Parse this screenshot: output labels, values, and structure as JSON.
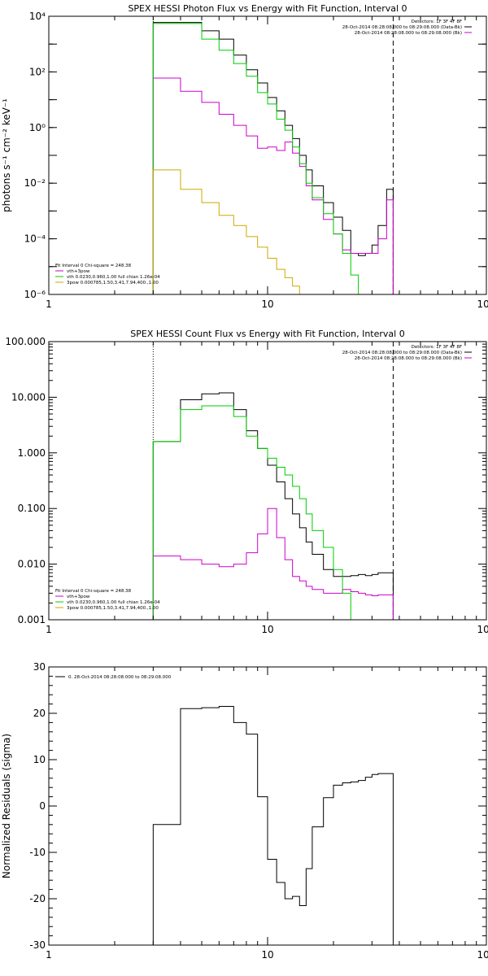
{
  "chart_data": [
    {
      "type": "line",
      "title": "SPEX HESSI Photon Flux vs Energy with Fit Function, Interval 0",
      "xlabel": "",
      "ylabel": "photons s⁻¹ cm⁻² keV⁻¹",
      "xscale": "log",
      "yscale": "log",
      "xlim": [
        1,
        100
      ],
      "ylim": [
        1e-06,
        10000.0
      ],
      "x_tick_labels": [
        "1",
        "10",
        "100"
      ],
      "y_tick_labels": [
        "10⁻⁶",
        "10⁻⁴",
        "10⁻²",
        "10⁰",
        "10²",
        "10⁴"
      ],
      "top_right_text": [
        "Detectors: 1F 3F 4F 8F",
        "28-Oct-2014 08:28:08.000 to 08:29:08.000 (Data-Bk)",
        "28-Oct-2014 08:28:08.000 to 08:29:08.000 (Bk)"
      ],
      "fit_legend_header": "Fit Interval 0   Chi-square = 248.38",
      "legend": [
        {
          "label": "vth+3pow",
          "color": "#cc00cc"
        },
        {
          "label": "vth 0.0230,0.960,1.00  full chian 1.26e-04",
          "color": "#00cc00"
        },
        {
          "label": "3pow 0.000785,1.50,3.41,7.94,400.,1.00",
          "color": "#ccaa00"
        }
      ],
      "vlines": [
        {
          "x": 3.0,
          "style": "dotted"
        },
        {
          "x": 37.5,
          "style": "dashed"
        }
      ],
      "edges": [
        3.0,
        4.0,
        5.0,
        6.0,
        7.0,
        8.0,
        9.0,
        10.0,
        11.0,
        12.0,
        13.0,
        14.0,
        15.0,
        16.0,
        18.0,
        20.0,
        22.0,
        24.0,
        26.0,
        28.0,
        30.0,
        32.0,
        35.0,
        37.5
      ],
      "series": [
        {
          "name": "Data-Bk",
          "color": "#000000",
          "values": [
            6000,
            6000,
            3000,
            1500,
            400,
            120,
            40,
            12,
            4,
            1.2,
            0.4,
            0.1,
            0.03,
            0.008,
            0.002,
            0.0006,
            0.0002,
            3e-05,
            2.5e-05,
            3e-05,
            6e-05,
            0.0003,
            0.006
          ]
        },
        {
          "name": "vth+3pow",
          "color": "#cc00cc",
          "values": [
            60,
            20,
            8,
            3,
            1.2,
            0.5,
            0.18,
            0.2,
            0.15,
            0.3,
            0.12,
            0.04,
            0.008,
            0.0025,
            0.0005,
            0.00015,
            4e-05,
            3e-05,
            3e-05,
            3e-05,
            3e-05,
            0.0001,
            0.0025
          ]
        },
        {
          "name": "vth",
          "color": "#00cc00",
          "values": [
            5500,
            5500,
            1500,
            600,
            200,
            70,
            18,
            7,
            2,
            0.8,
            0.2,
            0.05,
            0.01,
            0.003,
            0.0008,
            0.00015,
            3e-05,
            5e-06,
            1e-06,
            1e-06,
            1e-06,
            1e-06,
            1e-06
          ]
        },
        {
          "name": "3pow",
          "color": "#ccaa00",
          "values": [
            0.03,
            0.006,
            0.002,
            0.0007,
            0.0003,
            0.00012,
            5e-05,
            2e-05,
            8e-06,
            4e-06,
            2e-06,
            1e-06,
            1e-06,
            1e-06,
            1e-06,
            1e-06,
            1e-06,
            1e-06,
            1e-06,
            1e-06,
            1e-06,
            1e-06,
            1e-06
          ]
        }
      ]
    },
    {
      "type": "line",
      "title": "SPEX HESSI Count Flux vs Energy with Fit Function, Interval 0",
      "xlabel": "",
      "ylabel": "",
      "xscale": "log",
      "yscale": "log",
      "xlim": [
        1,
        100
      ],
      "ylim": [
        0.001,
        100
      ],
      "x_tick_labels": [
        "1",
        "10",
        "100"
      ],
      "y_tick_labels": [
        "0.001",
        "0.010",
        "0.100",
        "1.000",
        "10.000",
        "100.000"
      ],
      "top_right_text": [
        "Detectors: 1F 3F 4F 8F",
        "28-Oct-2014 08:28:08.000 to 08:29:08.000 (Data-Bk)",
        "28-Oct-2014 08:28:08.000 to 08:29:08.000 (Bk)"
      ],
      "fit_legend_header": "Fit Interval 0   Chi-square = 248.38",
      "legend": [
        {
          "label": "vth+3pow",
          "color": "#cc00cc"
        },
        {
          "label": "vth 0.0230,0.960,1.00  full chian 1.26e-04",
          "color": "#00cc00"
        },
        {
          "label": "3pow 0.000785,1.50,3.41,7.94,400.,1.00",
          "color": "#ccaa00"
        }
      ],
      "vlines": [
        {
          "x": 3.0,
          "style": "dotted"
        },
        {
          "x": 37.5,
          "style": "dashed"
        }
      ],
      "edges": [
        3.0,
        4.0,
        5.0,
        6.0,
        7.0,
        8.0,
        9.0,
        10.0,
        11.0,
        12.0,
        13.0,
        14.0,
        15.0,
        16.0,
        18.0,
        20.0,
        22.0,
        24.0,
        26.0,
        28.0,
        30.0,
        32.0,
        35.0,
        37.5
      ],
      "series": [
        {
          "name": "Data-Bk",
          "color": "#000000",
          "values": [
            1.6,
            9.0,
            11.5,
            12.0,
            6.0,
            2.5,
            1.2,
            0.6,
            0.3,
            0.15,
            0.08,
            0.045,
            0.025,
            0.015,
            0.008,
            0.006,
            0.006,
            0.0062,
            0.0065,
            0.0062,
            0.0065,
            0.007,
            0.007
          ]
        },
        {
          "name": "vth+3pow",
          "color": "#cc00cc",
          "values": [
            0.014,
            0.012,
            0.01,
            0.009,
            0.01,
            0.016,
            0.035,
            0.1,
            0.03,
            0.012,
            0.006,
            0.005,
            0.004,
            0.0035,
            0.003,
            0.003,
            0.0035,
            0.0032,
            0.003,
            0.0028,
            0.0027,
            0.0028,
            0.0028
          ]
        },
        {
          "name": "vth",
          "color": "#00cc00",
          "values": [
            1.6,
            6.0,
            7.0,
            7.0,
            4.5,
            2.0,
            1.2,
            0.8,
            0.55,
            0.4,
            0.25,
            0.15,
            0.08,
            0.04,
            0.02,
            0.008,
            0.003,
            0.001,
            0.001,
            0.001,
            0.001,
            0.001,
            0.001
          ]
        }
      ]
    },
    {
      "type": "line",
      "title": "",
      "xlabel": "",
      "ylabel": "Normalized Residuals (sigma)",
      "xscale": "log",
      "yscale": "linear",
      "xlim": [
        1,
        100
      ],
      "ylim": [
        -30,
        30
      ],
      "x_tick_labels": [
        "1",
        "10",
        "100"
      ],
      "y_tick_labels": [
        "-30",
        "-20",
        "-10",
        "0",
        "10",
        "20",
        "30"
      ],
      "legend": [
        {
          "label": "0. 28-Oct-2014 08:28:08.000 to 08:29:08.000",
          "color": "#000000"
        }
      ],
      "edges": [
        3.0,
        4.0,
        5.0,
        6.0,
        7.0,
        8.0,
        9.0,
        10.0,
        11.0,
        12.0,
        13.0,
        14.0,
        15.0,
        16.0,
        18.0,
        20.0,
        22.0,
        24.0,
        26.0,
        28.0,
        30.0,
        32.0,
        35.0,
        37.5
      ],
      "series": [
        {
          "name": "residuals",
          "color": "#000000",
          "values": [
            -4,
            21,
            21.2,
            21.5,
            18,
            15.5,
            2,
            -11.5,
            -16.5,
            -20,
            -19.5,
            -21.5,
            -13.5,
            -4.5,
            1.8,
            4.5,
            5,
            5.2,
            5.5,
            6.2,
            6.8,
            7,
            7
          ]
        }
      ]
    }
  ]
}
